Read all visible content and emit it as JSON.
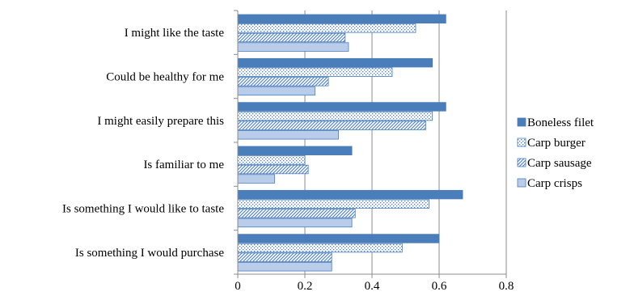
{
  "chart_data": {
    "type": "bar",
    "orientation": "horizontal",
    "categories": [
      "I might like the taste",
      "Could be healthy for me",
      "I might easily prepare this",
      "Is familiar to me",
      "Is something I would like to taste",
      "Is something I would purchase"
    ],
    "series": [
      {
        "name": "Boneless filet",
        "pattern": "solid",
        "color": "#4a7ebb",
        "values": [
          0.62,
          0.58,
          0.62,
          0.34,
          0.67,
          0.6
        ]
      },
      {
        "name": "Carp burger",
        "pattern": "dots",
        "color": "#4a7ebb",
        "values": [
          0.53,
          0.46,
          0.58,
          0.2,
          0.57,
          0.49
        ]
      },
      {
        "name": "Carp sausage",
        "pattern": "diagonal",
        "color": "#4a7ebb",
        "values": [
          0.32,
          0.27,
          0.56,
          0.21,
          0.35,
          0.28
        ]
      },
      {
        "name": "Carp crisps",
        "pattern": "light",
        "color": "#b9cdea",
        "values": [
          0.33,
          0.23,
          0.3,
          0.11,
          0.34,
          0.28
        ]
      }
    ],
    "xlim": [
      0,
      0.8
    ],
    "xticks": [
      "0",
      "0.2",
      "0.4",
      "0.6",
      "0.8"
    ],
    "grid": "vertical",
    "legend_position": "right",
    "title": "",
    "xlabel": "",
    "ylabel": ""
  }
}
